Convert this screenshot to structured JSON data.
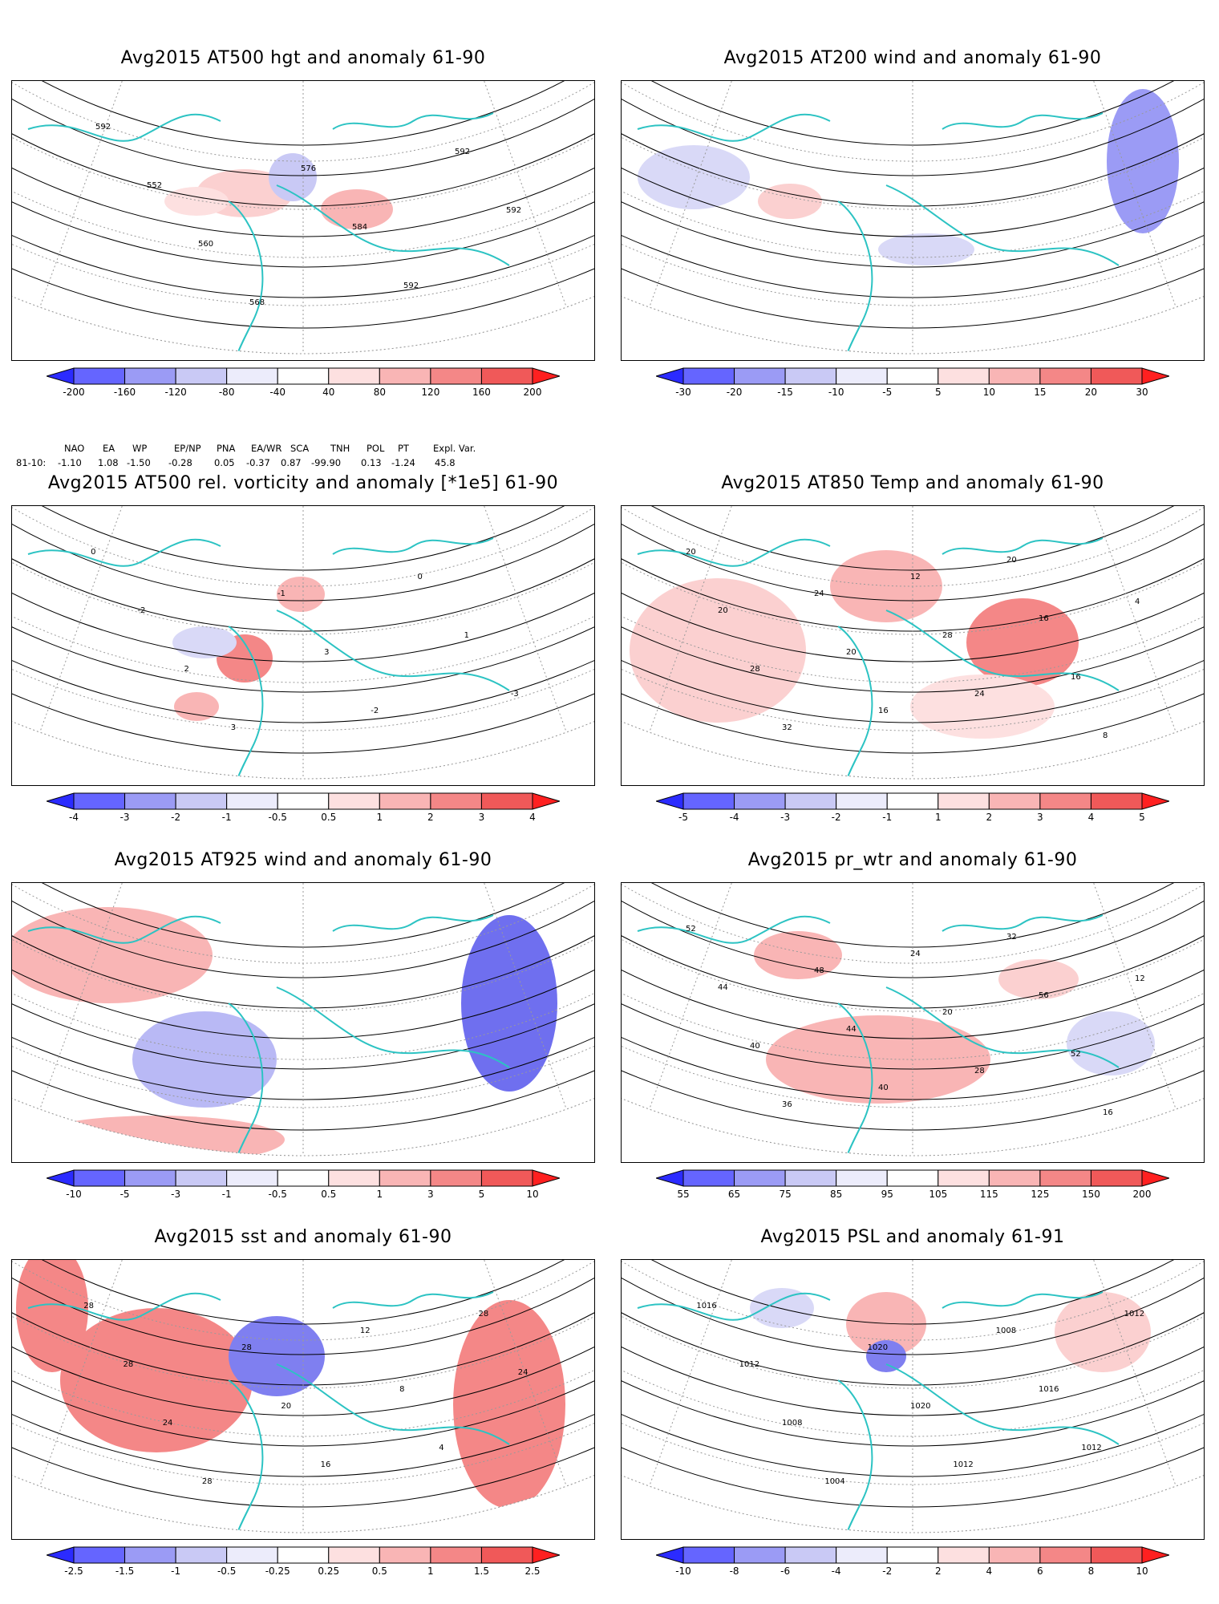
{
  "panels": [
    {
      "title": "Avg2015 AT500 hgt and anomaly 61-90",
      "colorbar": {
        "labels": [
          "-200",
          "-160",
          "-120",
          "-80",
          "-40",
          "40",
          "80",
          "120",
          "160",
          "200"
        ]
      },
      "contour_labels": [
        "592",
        "552",
        "560",
        "568",
        "576",
        "584",
        "592",
        "592",
        "592"
      ]
    },
    {
      "title": "Avg2015 AT200 wind and anomaly 61-90",
      "colorbar": {
        "labels": [
          "-30",
          "-20",
          "-15",
          "-10",
          "-5",
          "5",
          "10",
          "15",
          "20",
          "30"
        ]
      },
      "contour_labels": []
    },
    {
      "title": "Avg2015 AT500 rel. vorticity and anomaly [*1e5] 61-90",
      "colorbar": {
        "labels": [
          "-4",
          "-3",
          "-2",
          "-1",
          "-0.5",
          "0.5",
          "1",
          "2",
          "3",
          "4"
        ]
      },
      "contour_labels": [
        "0",
        "-2",
        "2",
        "3",
        "-1",
        "3",
        "-2",
        "0",
        "1",
        "-3"
      ]
    },
    {
      "title": "Avg2015 AT850 Temp and anomaly 61-90",
      "colorbar": {
        "labels": [
          "-5",
          "-4",
          "-3",
          "-2",
          "-1",
          "1",
          "2",
          "3",
          "4",
          "5"
        ]
      },
      "contour_labels": [
        "20",
        "20",
        "28",
        "32",
        "24",
        "20",
        "16",
        "12",
        "28",
        "24",
        "20",
        "16",
        "16",
        "8",
        "4"
      ]
    },
    {
      "title": "Avg2015 AT925 wind and anomaly 61-90",
      "colorbar": {
        "labels": [
          "-10",
          "-5",
          "-3",
          "-1",
          "-0.5",
          "0.5",
          "1",
          "3",
          "5",
          "10"
        ]
      },
      "contour_labels": []
    },
    {
      "title": "Avg2015 pr_wtr and anomaly 61-90",
      "colorbar": {
        "labels": [
          "55",
          "65",
          "75",
          "85",
          "95",
          "105",
          "115",
          "125",
          "150",
          "200"
        ]
      },
      "contour_labels": [
        "52",
        "44",
        "40",
        "36",
        "48",
        "44",
        "40",
        "24",
        "20",
        "28",
        "32",
        "56",
        "52",
        "16",
        "12"
      ]
    },
    {
      "title": "Avg2015 sst and anomaly 61-90",
      "colorbar": {
        "labels": [
          "-2.5",
          "-1.5",
          "-1",
          "-0.5",
          "-0.25",
          "0.25",
          "0.5",
          "1",
          "1.5",
          "2.5"
        ]
      },
      "contour_labels": [
        "28",
        "28",
        "24",
        "28",
        "28",
        "20",
        "16",
        "12",
        "8",
        "4",
        "28",
        "24"
      ]
    },
    {
      "title": "Avg2015 PSL and anomaly 61-91",
      "colorbar": {
        "labels": [
          "-10",
          "-8",
          "-6",
          "-4",
          "-2",
          "2",
          "4",
          "6",
          "8",
          "10"
        ]
      },
      "contour_labels": [
        "1016",
        "1012",
        "1008",
        "1004",
        "1020",
        "1020",
        "1012",
        "1008",
        "1016",
        "1012",
        "1012"
      ]
    }
  ],
  "teleconnections": {
    "headers": [
      "NAO",
      "EA",
      "WP",
      "EP/NP",
      "PNA",
      "EA/WR",
      "SCA",
      "TNH",
      "POL",
      "PT",
      "Expl. Var."
    ],
    "row_label": "81-10:",
    "values": [
      "-1.10",
      "1.08",
      "-1.50",
      "-0.28",
      "0.05",
      "-0.37",
      "0.87",
      "-99.90",
      "0.13",
      "-1.24",
      "45.8"
    ]
  },
  "colorbar_colors": [
    "#2b2bff",
    "#6565ff",
    "#9b9bf5",
    "#c9c9f5",
    "#ececfb",
    "#ffffff",
    "#fde0e0",
    "#f9b5b5",
    "#f48787",
    "#f05959",
    "#ff2020"
  ],
  "map_colors": {
    "coast": "#2cc3c3",
    "contour": "#000000",
    "grid": "#9a9a9a"
  }
}
